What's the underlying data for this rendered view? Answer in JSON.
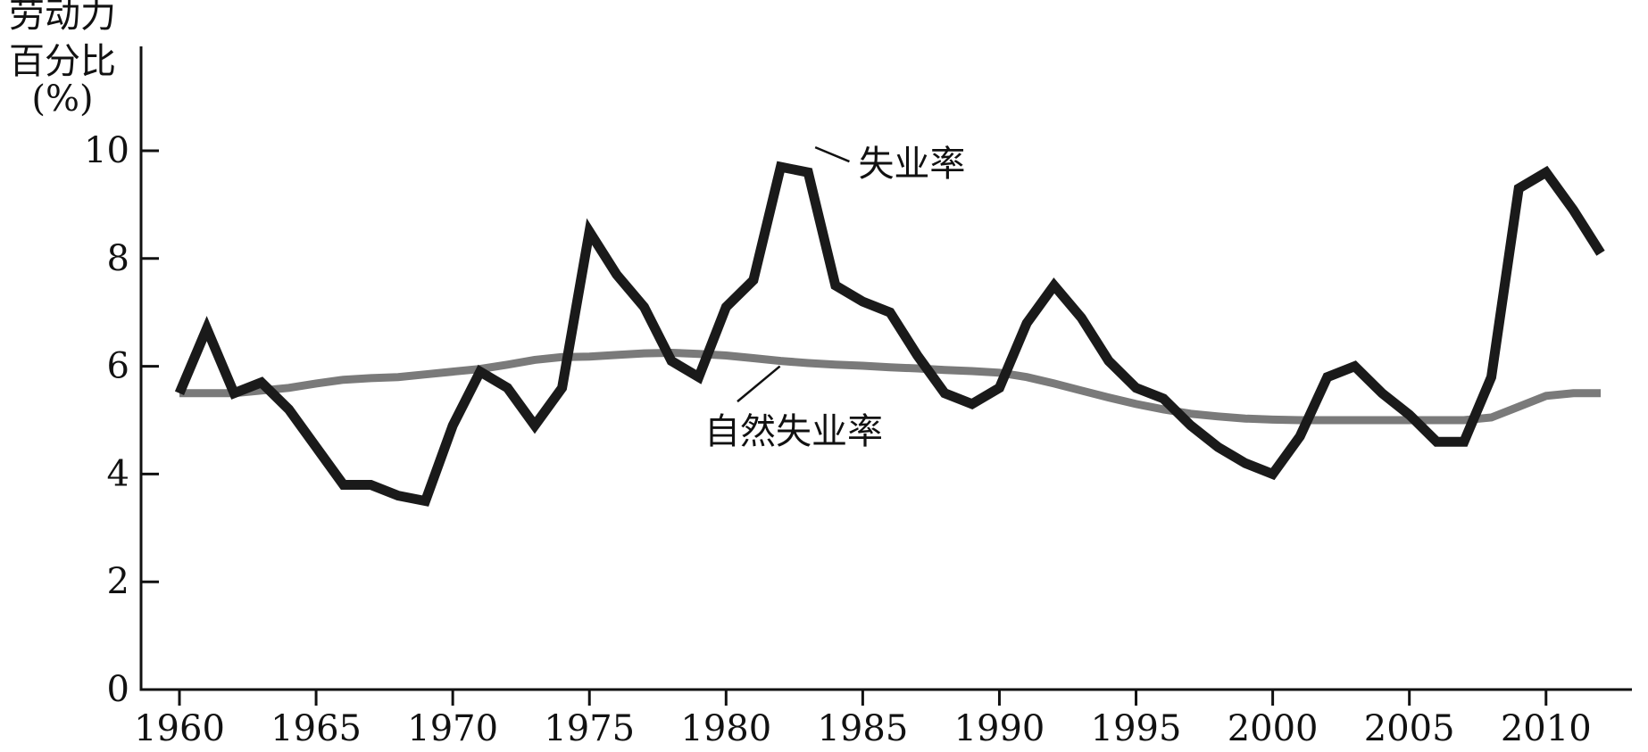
{
  "chart_data": {
    "type": "line",
    "ylabel_lines": [
      "劳动力",
      "百分比",
      "(%)"
    ],
    "xlabel": "",
    "xlim": [
      1960,
      2012
    ],
    "ylim": [
      0,
      12
    ],
    "x_ticks": [
      1960,
      1965,
      1970,
      1975,
      1980,
      1985,
      1990,
      1995,
      2000,
      2005,
      2010
    ],
    "y_ticks": [
      0,
      2,
      4,
      6,
      8,
      10
    ],
    "grid": false,
    "legend": "none",
    "series": [
      {
        "name": "失业率",
        "color": "#1a1a1a",
        "x": [
          1960,
          1961,
          1962,
          1963,
          1964,
          1965,
          1966,
          1967,
          1968,
          1969,
          1970,
          1971,
          1972,
          1973,
          1974,
          1975,
          1976,
          1977,
          1978,
          1979,
          1980,
          1981,
          1982,
          1983,
          1984,
          1985,
          1986,
          1987,
          1988,
          1989,
          1990,
          1991,
          1992,
          1993,
          1994,
          1995,
          1996,
          1997,
          1998,
          1999,
          2000,
          2001,
          2002,
          2003,
          2004,
          2005,
          2006,
          2007,
          2008,
          2009,
          2010,
          2011,
          2012
        ],
        "values": [
          5.5,
          6.7,
          5.5,
          5.7,
          5.2,
          4.5,
          3.8,
          3.8,
          3.6,
          3.5,
          4.9,
          5.9,
          5.6,
          4.9,
          5.6,
          8.5,
          7.7,
          7.1,
          6.1,
          5.8,
          7.1,
          7.6,
          9.7,
          9.6,
          7.5,
          7.2,
          7.0,
          6.2,
          5.5,
          5.3,
          5.6,
          6.8,
          7.5,
          6.9,
          6.1,
          5.6,
          5.4,
          4.9,
          4.5,
          4.2,
          4.0,
          4.7,
          5.8,
          6.0,
          5.5,
          5.1,
          4.6,
          4.6,
          5.8,
          9.3,
          9.6,
          8.9,
          8.1
        ]
      },
      {
        "name": "自然失业率",
        "color": "#7a7a7a",
        "x": [
          1960,
          1961,
          1962,
          1963,
          1964,
          1965,
          1966,
          1967,
          1968,
          1969,
          1970,
          1971,
          1972,
          1973,
          1974,
          1975,
          1976,
          1977,
          1978,
          1979,
          1980,
          1981,
          1982,
          1983,
          1984,
          1985,
          1986,
          1987,
          1988,
          1989,
          1990,
          1991,
          1992,
          1993,
          1994,
          1995,
          1996,
          1997,
          1998,
          1999,
          2000,
          2001,
          2002,
          2003,
          2004,
          2005,
          2006,
          2007,
          2008,
          2009,
          2010,
          2011,
          2012
        ],
        "values": [
          5.5,
          5.5,
          5.5,
          5.55,
          5.6,
          5.68,
          5.75,
          5.78,
          5.8,
          5.85,
          5.9,
          5.95,
          6.03,
          6.12,
          6.17,
          6.18,
          6.21,
          6.24,
          6.25,
          6.23,
          6.2,
          6.15,
          6.1,
          6.06,
          6.03,
          6.01,
          5.98,
          5.96,
          5.93,
          5.91,
          5.88,
          5.8,
          5.68,
          5.55,
          5.42,
          5.3,
          5.2,
          5.12,
          5.07,
          5.03,
          5.01,
          5.0,
          5.0,
          5.0,
          5.0,
          5.0,
          5.0,
          5.0,
          5.05,
          5.25,
          5.45,
          5.5,
          5.5
        ]
      }
    ],
    "annotations": [
      {
        "text": "失业率",
        "series": 0,
        "x": 1983,
        "y": 9.7,
        "label_x": 1985.1,
        "label_y": 9.9
      },
      {
        "text": "自然失业率",
        "series": 1,
        "x": 1982.1,
        "y": 6.1,
        "label_x": 1979.5,
        "label_y": 4.65
      }
    ]
  }
}
